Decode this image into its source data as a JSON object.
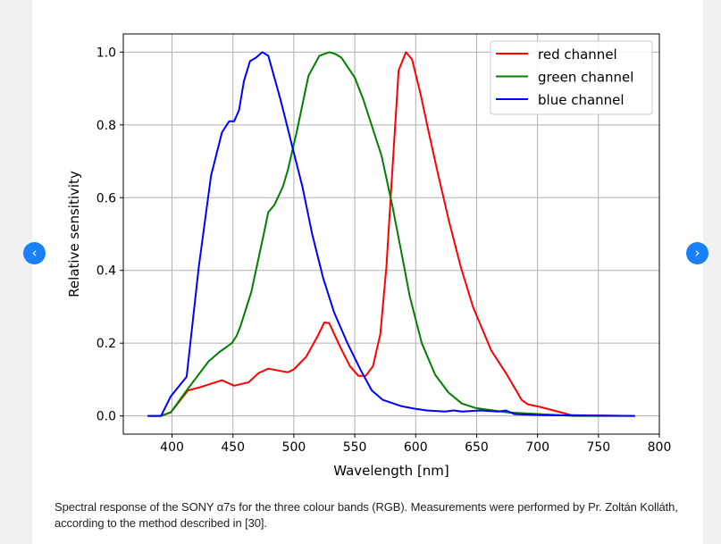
{
  "carousel": {
    "prev_icon": "‹",
    "next_icon": "›"
  },
  "caption": "Spectral response of the SONY α7s for the three colour bands (RGB). Measurements were performed by Pr. Zoltán Kolláth, according to the method described in [30].",
  "chart_data": {
    "type": "line",
    "title": "",
    "xlabel": "Wavelength [nm]",
    "ylabel": "Relative sensitivity",
    "xlim": [
      360,
      800
    ],
    "ylim": [
      -0.05,
      1.05
    ],
    "xticks": [
      400,
      450,
      500,
      550,
      600,
      650,
      700,
      750,
      800
    ],
    "yticks": [
      0.0,
      0.2,
      0.4,
      0.6,
      0.8,
      1.0
    ],
    "xtick_labels": [
      "400",
      "450",
      "500",
      "550",
      "600",
      "650",
      "700",
      "750",
      "800"
    ],
    "ytick_labels": [
      "0.0",
      "0.2",
      "0.4",
      "0.6",
      "0.8",
      "1.0"
    ],
    "grid": true,
    "legend_position": "top-right",
    "series": [
      {
        "name": "red channel",
        "color": "#ff0000",
        "x": [
          380,
          391,
          399,
          413,
          422,
          441,
          451,
          463,
          471,
          479,
          495,
          500,
          510,
          519,
          525,
          529,
          538,
          546,
          553,
          559,
          565,
          571,
          576,
          580,
          586,
          592,
          597,
          604,
          611,
          618,
          627,
          637,
          647,
          662,
          675,
          687,
          692,
          702,
          728,
          780
        ],
        "y": [
          0,
          0,
          0.01,
          0.07,
          0.078,
          0.098,
          0.083,
          0.093,
          0.118,
          0.13,
          0.12,
          0.128,
          0.162,
          0.216,
          0.257,
          0.255,
          0.19,
          0.137,
          0.11,
          0.11,
          0.137,
          0.225,
          0.41,
          0.63,
          0.95,
          1.0,
          0.98,
          0.885,
          0.775,
          0.67,
          0.54,
          0.41,
          0.3,
          0.18,
          0.113,
          0.044,
          0.032,
          0.025,
          0.002,
          0
        ]
      },
      {
        "name": "green channel",
        "color": "#008000",
        "x": [
          380,
          391,
          399,
          412,
          430,
          439,
          449,
          453,
          456,
          465,
          475,
          479,
          484,
          491,
          495,
          502,
          512,
          521,
          529,
          534,
          539,
          546,
          550,
          557,
          572,
          581,
          590,
          595,
          605,
          616,
          627,
          638,
          649,
          675,
          690,
          730,
          780
        ],
        "y": [
          0,
          0,
          0.01,
          0.07,
          0.15,
          0.176,
          0.2,
          0.22,
          0.245,
          0.34,
          0.495,
          0.56,
          0.58,
          0.63,
          0.675,
          0.775,
          0.935,
          0.99,
          1.0,
          0.995,
          0.985,
          0.95,
          0.93,
          0.87,
          0.715,
          0.575,
          0.42,
          0.33,
          0.2,
          0.113,
          0.064,
          0.034,
          0.022,
          0.01,
          0.007,
          0,
          0
        ]
      },
      {
        "name": "blue channel",
        "color": "#0000ff",
        "x": [
          380,
          391,
          399,
          412,
          422,
          432,
          441,
          447,
          451,
          455,
          459,
          464,
          469,
          474,
          479,
          489,
          498,
          507,
          515,
          524,
          533,
          544,
          555,
          564,
          573,
          588,
          599,
          609,
          624,
          631,
          638,
          653,
          668,
          674,
          681,
          704,
          780
        ],
        "y": [
          0,
          0,
          0.054,
          0.108,
          0.41,
          0.66,
          0.78,
          0.81,
          0.81,
          0.84,
          0.92,
          0.975,
          0.985,
          1.0,
          0.99,
          0.87,
          0.75,
          0.63,
          0.5,
          0.38,
          0.285,
          0.2,
          0.125,
          0.07,
          0.044,
          0.027,
          0.02,
          0.015,
          0.012,
          0.015,
          0.012,
          0.015,
          0.012,
          0.015,
          0.005,
          0.002,
          0
        ]
      }
    ]
  }
}
